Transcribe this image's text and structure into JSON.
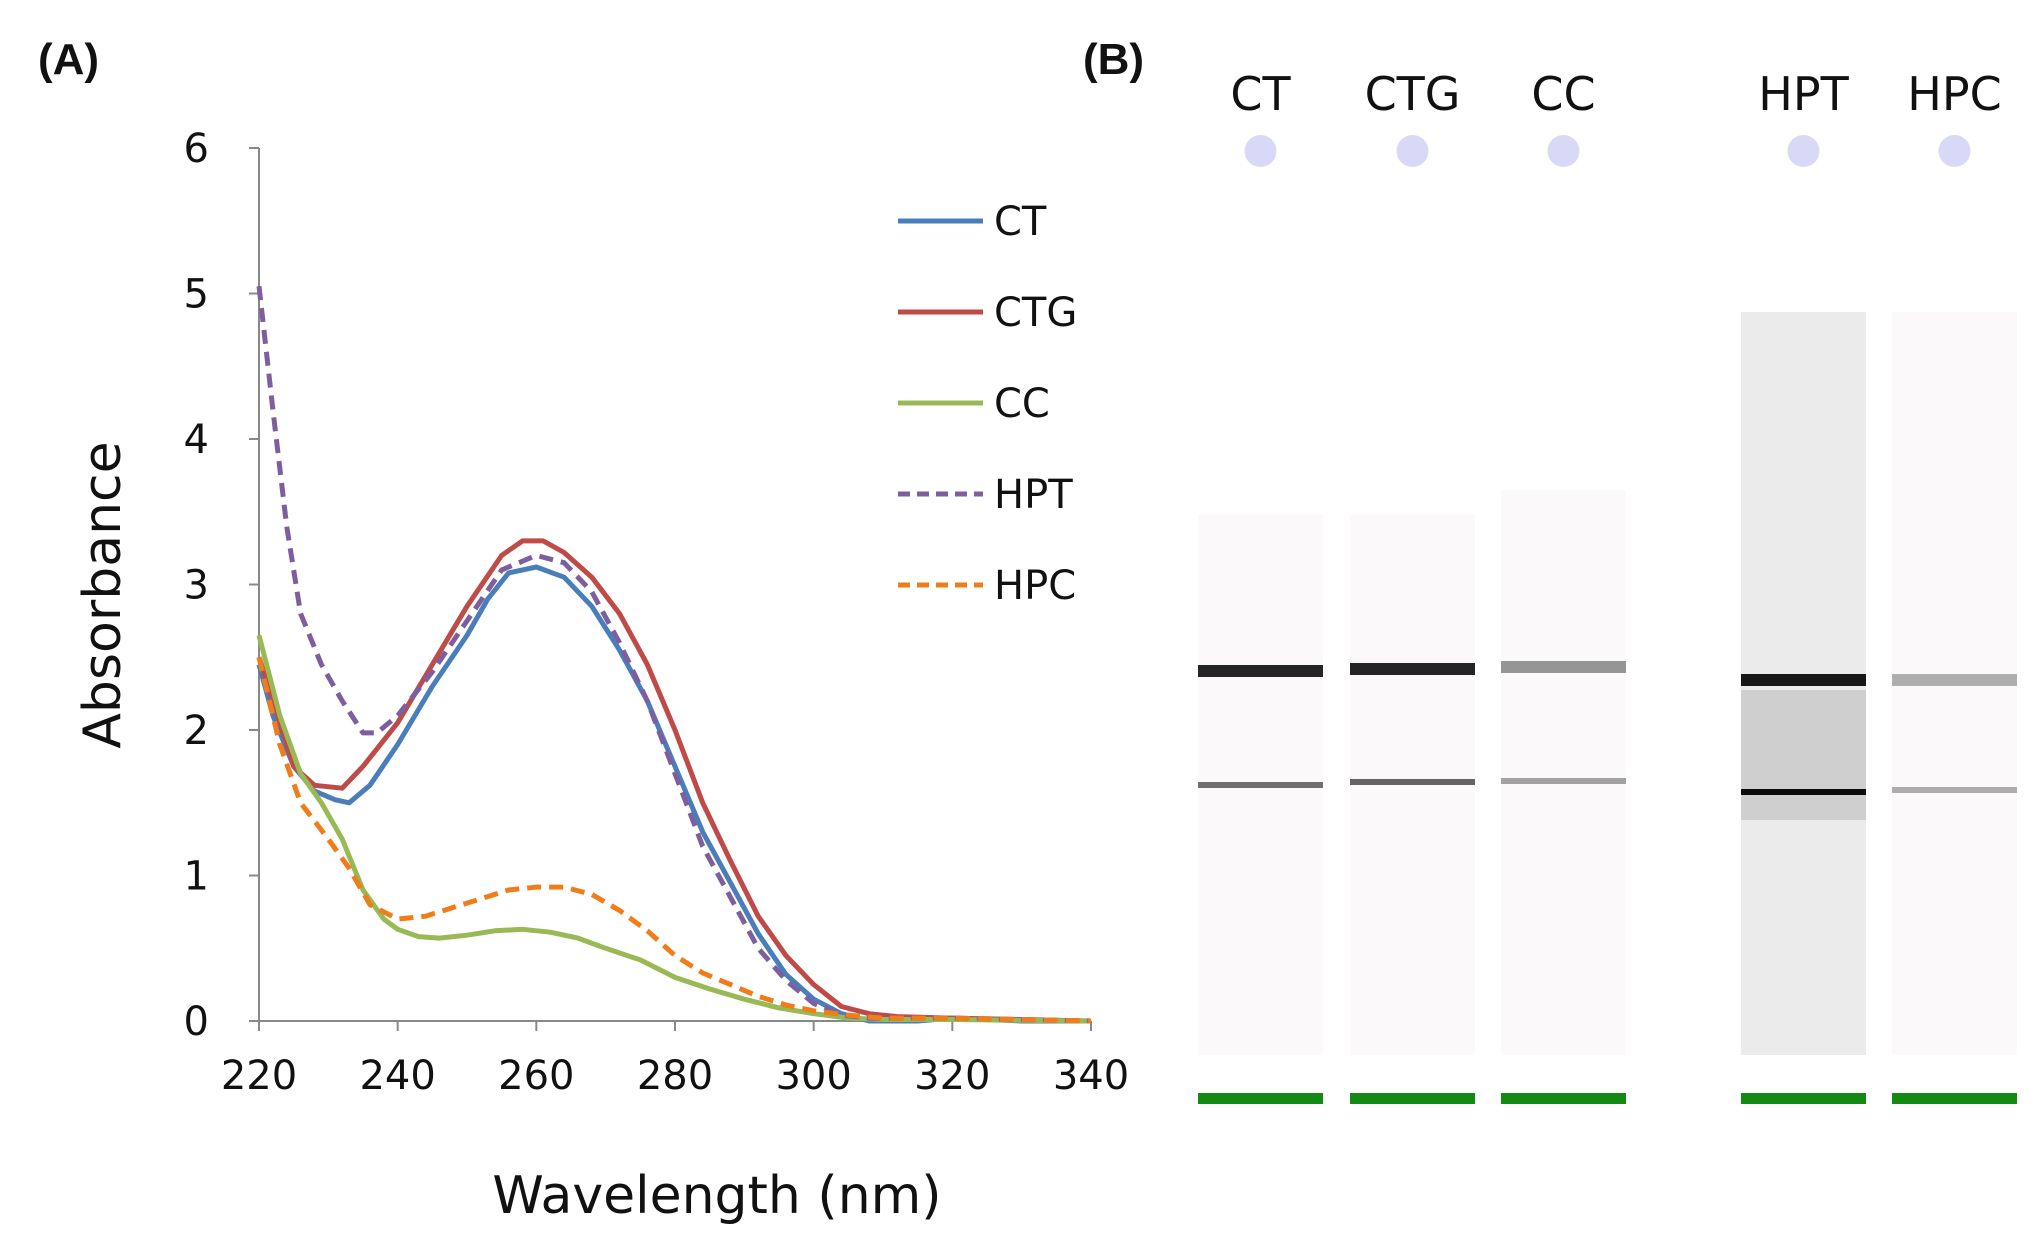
{
  "panels": {
    "a": "(A)",
    "b": "(B)"
  },
  "colors": {
    "CT": "#4a7ebb",
    "CTG": "#be4b48",
    "CC": "#98b954",
    "HPT": "#7d5fa0",
    "HPC": "#f07d1c",
    "marker": "#138a13",
    "well": "#d9d9f7"
  },
  "chart_data": {
    "type": "line",
    "xlabel": "Wavelength (nm)",
    "ylabel": "Absorbance",
    "xlim": [
      220,
      340
    ],
    "ylim": [
      0,
      6
    ],
    "xticks": [
      "220",
      "240",
      "260",
      "280",
      "300",
      "320",
      "340"
    ],
    "yticks": [
      "0",
      "1",
      "2",
      "3",
      "4",
      "5",
      "6"
    ],
    "grid": false,
    "legend": "right",
    "series": [
      {
        "name": "CT",
        "dash": false,
        "x": [
          220,
          222,
          225,
          228,
          231,
          233,
          236,
          240,
          245,
          250,
          253,
          256,
          260,
          264,
          268,
          272,
          276,
          280,
          284,
          288,
          292,
          296,
          300,
          304,
          308,
          315,
          320,
          330,
          340
        ],
        "y": [
          2.45,
          2.1,
          1.75,
          1.58,
          1.52,
          1.5,
          1.62,
          1.9,
          2.3,
          2.65,
          2.9,
          3.08,
          3.12,
          3.05,
          2.85,
          2.55,
          2.2,
          1.75,
          1.3,
          0.95,
          0.6,
          0.32,
          0.15,
          0.05,
          0.0,
          0.0,
          0.02,
          0.0,
          0.0
        ]
      },
      {
        "name": "CTG",
        "dash": false,
        "x": [
          220,
          225,
          228,
          232,
          235,
          240,
          245,
          250,
          255,
          258,
          261,
          264,
          268,
          272,
          276,
          280,
          284,
          288,
          292,
          296,
          300,
          304,
          308,
          312,
          320,
          340
        ],
        "y": [
          2.5,
          1.75,
          1.62,
          1.6,
          1.75,
          2.05,
          2.45,
          2.85,
          3.2,
          3.3,
          3.3,
          3.22,
          3.05,
          2.8,
          2.45,
          2.0,
          1.5,
          1.1,
          0.72,
          0.45,
          0.25,
          0.1,
          0.05,
          0.03,
          0.02,
          0.0
        ]
      },
      {
        "name": "CC",
        "dash": false,
        "x": [
          220,
          223,
          226,
          229,
          232,
          235,
          238,
          240,
          243,
          246,
          250,
          254,
          258,
          262,
          266,
          270,
          275,
          280,
          285,
          290,
          295,
          300,
          305,
          310,
          320,
          340
        ],
        "y": [
          2.65,
          2.1,
          1.7,
          1.5,
          1.25,
          0.9,
          0.7,
          0.63,
          0.58,
          0.57,
          0.59,
          0.62,
          0.63,
          0.61,
          0.57,
          0.5,
          0.42,
          0.3,
          0.22,
          0.15,
          0.09,
          0.05,
          0.02,
          0.01,
          0.01,
          0.0
        ]
      },
      {
        "name": "HPT",
        "dash": true,
        "x": [
          220,
          222,
          224,
          226,
          229,
          232,
          235,
          237,
          240,
          245,
          250,
          255,
          260,
          264,
          268,
          272,
          276,
          280,
          284,
          288,
          292,
          296,
          300,
          304,
          308,
          320,
          340
        ],
        "y": [
          5.05,
          4.2,
          3.4,
          2.8,
          2.45,
          2.2,
          1.98,
          1.98,
          2.1,
          2.4,
          2.75,
          3.1,
          3.2,
          3.15,
          2.95,
          2.6,
          2.2,
          1.7,
          1.2,
          0.85,
          0.5,
          0.28,
          0.12,
          0.04,
          0.02,
          0.02,
          0.0
        ]
      },
      {
        "name": "HPC",
        "dash": true,
        "x": [
          220,
          223,
          226,
          230,
          233,
          236,
          240,
          244,
          248,
          252,
          256,
          260,
          264,
          268,
          272,
          276,
          280,
          284,
          288,
          292,
          296,
          300,
          305,
          310,
          320,
          340
        ],
        "y": [
          2.5,
          1.9,
          1.5,
          1.25,
          1.05,
          0.8,
          0.7,
          0.72,
          0.78,
          0.84,
          0.9,
          0.92,
          0.92,
          0.87,
          0.76,
          0.62,
          0.45,
          0.33,
          0.25,
          0.17,
          0.11,
          0.07,
          0.04,
          0.02,
          0.02,
          0.0
        ]
      }
    ]
  },
  "gel": {
    "lanes": [
      {
        "label": "CT"
      },
      {
        "label": "CTG"
      },
      {
        "label": "CC"
      },
      {
        "label": "HPT"
      },
      {
        "label": "HPC"
      }
    ]
  }
}
